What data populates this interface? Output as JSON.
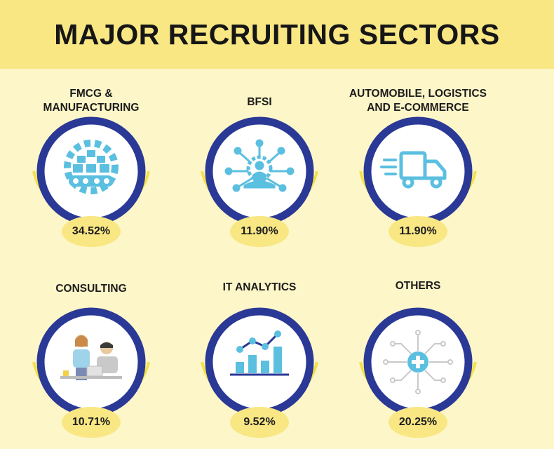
{
  "header": {
    "title": "MAJOR RECRUITING SECTORS"
  },
  "sectors": [
    {
      "title": "FMCG &\nMANUFACTURING",
      "value": "34.52%",
      "icon": "factory-gear-icon"
    },
    {
      "title": "BFSI",
      "value": "11.90%",
      "icon": "network-person-icon"
    },
    {
      "title": "AUTOMOBILE, LOGISTICS\nAND E-COMMERCE",
      "value": "11.90%",
      "icon": "delivery-truck-icon"
    },
    {
      "title": "CONSULTING",
      "value": "10.71%",
      "icon": "consulting-people-icon"
    },
    {
      "title": "IT ANALYTICS",
      "value": "9.52%",
      "icon": "analytics-chart-icon"
    },
    {
      "title": "OTHERS",
      "value": "20.25%",
      "icon": "medical-circuit-icon"
    }
  ],
  "colors": {
    "background": "#fdf6c8",
    "header": "#f9e784",
    "ring_blue": "#2a3896",
    "ring_yellow": "#f5e04a",
    "icon_blue": "#5bbfe0"
  }
}
